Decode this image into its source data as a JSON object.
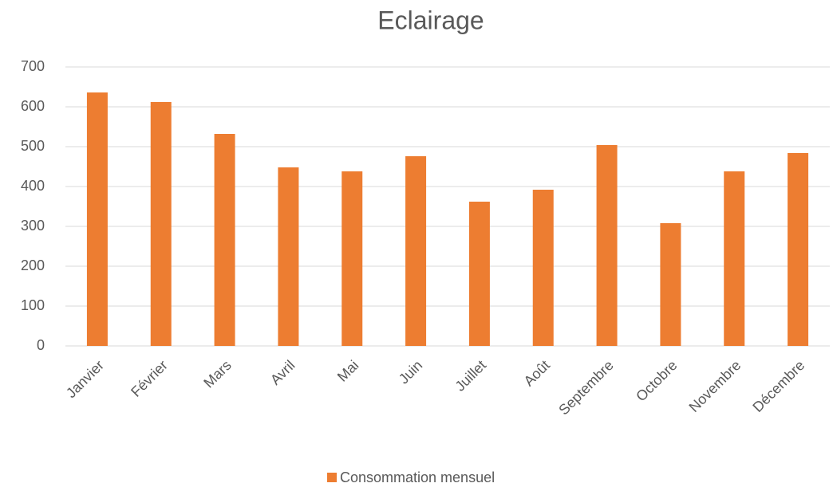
{
  "chart_data": {
    "type": "bar",
    "title": "Eclairage",
    "categories": [
      "Janvier",
      "Février",
      "Mars",
      "Avril",
      "Mai",
      "Juin",
      "Juillet",
      "Août",
      "Septembre",
      "Octobre",
      "Novembre",
      "Décembre"
    ],
    "series": [
      {
        "name": "Consommation mensuel",
        "color": "#ed7d31",
        "values": [
          636,
          612,
          532,
          448,
          438,
          476,
          362,
          392,
          504,
          308,
          438,
          484
        ]
      }
    ],
    "ylim": [
      0,
      700
    ],
    "yticks": [
      0,
      100,
      200,
      300,
      400,
      500,
      600,
      700
    ],
    "grid": true,
    "legend": "bottom"
  }
}
